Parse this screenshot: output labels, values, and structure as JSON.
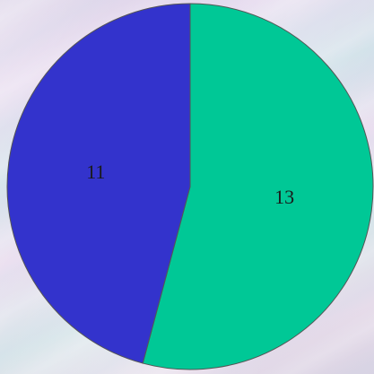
{
  "chart_data": {
    "type": "pie",
    "slices": [
      {
        "label": "13",
        "value": 13,
        "color": "#00c896"
      },
      {
        "label": "11",
        "value": 11,
        "color": "#3333cc"
      }
    ],
    "start_angle_deg": 0,
    "direction": "clockwise",
    "legend": "none"
  }
}
